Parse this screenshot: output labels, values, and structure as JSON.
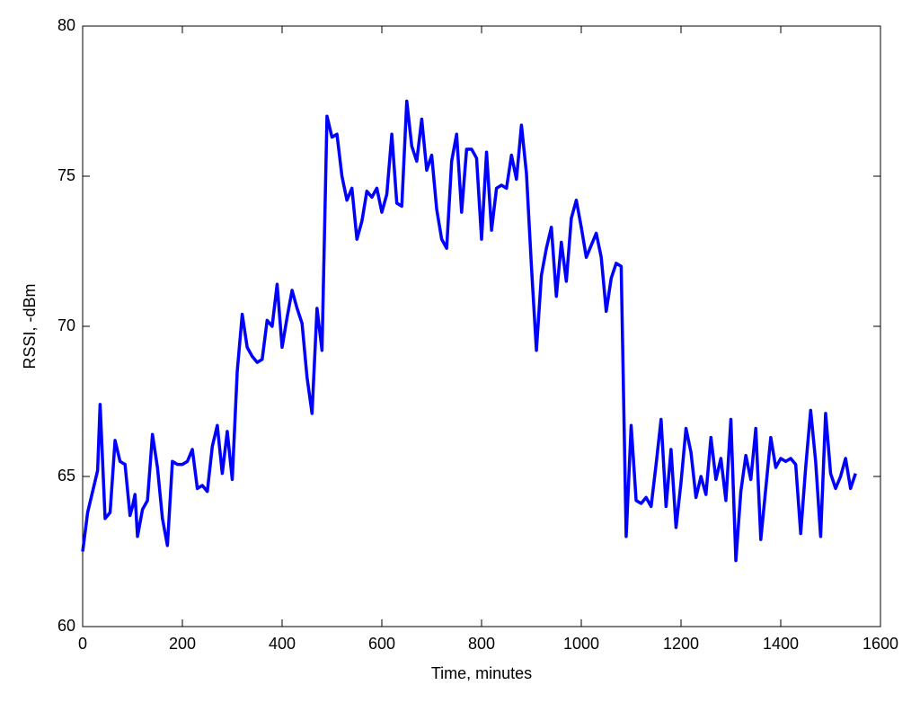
{
  "chart_data": {
    "type": "line",
    "xlabel": "Time, minutes",
    "ylabel": "RSSI, -dBm",
    "xlim": [
      0,
      1600
    ],
    "xticks": [
      0,
      200,
      400,
      600,
      800,
      1000,
      1200,
      1400,
      1600
    ],
    "ylim": [
      60,
      80
    ],
    "yticks": [
      60,
      65,
      70,
      75,
      80
    ],
    "x": [
      0,
      10,
      20,
      30,
      35,
      40,
      45,
      55,
      60,
      65,
      75,
      85,
      95,
      100,
      105,
      110,
      120,
      130,
      140,
      150,
      160,
      170,
      180,
      190,
      200,
      210,
      220,
      230,
      240,
      250,
      260,
      270,
      280,
      290,
      300,
      310,
      320,
      330,
      340,
      350,
      360,
      370,
      380,
      390,
      400,
      410,
      420,
      430,
      440,
      450,
      460,
      470,
      480,
      490,
      500,
      510,
      520,
      530,
      540,
      550,
      560,
      570,
      580,
      590,
      600,
      610,
      620,
      630,
      640,
      650,
      660,
      670,
      680,
      690,
      700,
      710,
      720,
      730,
      740,
      750,
      760,
      770,
      780,
      790,
      800,
      810,
      820,
      830,
      840,
      850,
      860,
      870,
      880,
      890,
      900,
      910,
      920,
      930,
      940,
      950,
      960,
      970,
      980,
      990,
      1000,
      1010,
      1020,
      1030,
      1040,
      1050,
      1060,
      1070,
      1080,
      1090,
      1100,
      1110,
      1120,
      1130,
      1140,
      1150,
      1160,
      1170,
      1180,
      1190,
      1200,
      1210,
      1220,
      1230,
      1240,
      1250,
      1260,
      1270,
      1280,
      1290,
      1300,
      1310,
      1320,
      1330,
      1340,
      1350,
      1360,
      1370,
      1380,
      1390,
      1400,
      1410,
      1420,
      1430,
      1440,
      1450,
      1460,
      1470,
      1480,
      1490,
      1500,
      1510,
      1520,
      1530,
      1540,
      1550
    ],
    "series": [
      {
        "color": "#0000ff",
        "values": [
          62.5,
          63.8,
          64.5,
          65.2,
          67.4,
          65.5,
          63.6,
          63.8,
          65.0,
          66.2,
          65.5,
          65.4,
          63.7,
          64.0,
          64.4,
          63.0,
          63.9,
          64.2,
          66.4,
          65.3,
          63.6,
          62.7,
          65.5,
          65.4,
          65.4,
          65.5,
          65.9,
          64.6,
          64.7,
          64.5,
          66.0,
          66.7,
          65.1,
          66.5,
          64.9,
          68.5,
          70.4,
          69.3,
          69.0,
          68.8,
          68.9,
          70.2,
          70.0,
          71.4,
          69.3,
          70.3,
          71.2,
          70.6,
          70.1,
          68.3,
          67.1,
          70.6,
          69.2,
          77.0,
          76.3,
          76.4,
          75.0,
          74.2,
          74.6,
          72.9,
          73.5,
          74.5,
          74.3,
          74.6,
          73.8,
          74.4,
          76.4,
          74.1,
          74.0,
          77.5,
          76.0,
          75.5,
          76.9,
          75.2,
          75.7,
          73.9,
          72.9,
          72.6,
          75.5,
          76.4,
          73.8,
          75.9,
          75.9,
          75.6,
          72.9,
          75.8,
          73.2,
          74.6,
          74.7,
          74.6,
          75.7,
          74.9,
          76.7,
          75.1,
          72.0,
          69.2,
          71.7,
          72.6,
          73.3,
          71.0,
          72.8,
          71.5,
          73.6,
          74.2,
          73.3,
          72.3,
          72.7,
          73.1,
          72.3,
          70.5,
          71.6,
          72.1,
          72.0,
          63.0,
          66.7,
          64.2,
          64.1,
          64.3,
          64.0,
          65.4,
          66.9,
          64.0,
          65.9,
          63.3,
          64.8,
          66.6,
          65.8,
          64.3,
          65.0,
          64.4,
          66.3,
          64.9,
          65.6,
          64.2,
          66.9,
          62.2,
          64.5,
          65.7,
          64.9,
          66.6,
          62.9,
          64.6,
          66.3,
          65.3,
          65.6,
          65.5,
          65.6,
          65.4,
          63.1,
          65.3,
          67.2,
          65.5,
          63.0,
          67.1,
          65.1,
          64.6,
          65.0,
          65.6,
          64.6,
          65.1
        ]
      }
    ]
  }
}
